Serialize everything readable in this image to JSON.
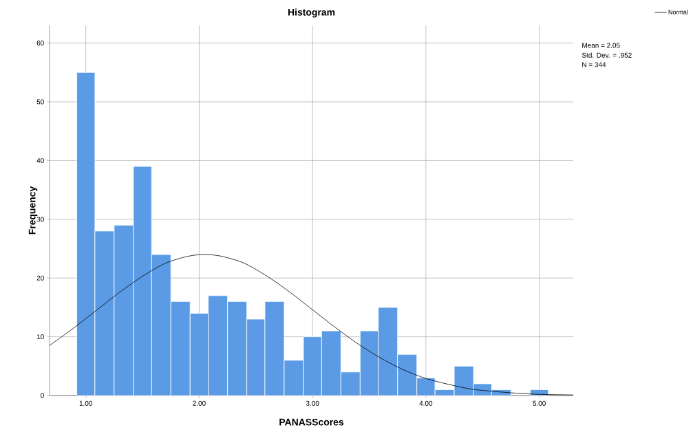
{
  "chart_data": {
    "type": "histogram",
    "title": "Histogram",
    "xlabel": "PANASScores",
    "ylabel": "Frequency",
    "bins": [
      0.92,
      1.08,
      1.25,
      1.42,
      1.58,
      1.75,
      1.92,
      2.08,
      2.25,
      2.42,
      2.58,
      2.75,
      2.92,
      3.08,
      3.25,
      3.42,
      3.58,
      3.75,
      3.92,
      4.08,
      4.25,
      4.42,
      4.58,
      4.75,
      4.92,
      5.08
    ],
    "values": [
      55,
      28,
      29,
      39,
      24,
      16,
      14,
      17,
      16,
      13,
      16,
      6,
      10,
      11,
      4,
      11,
      15,
      7,
      3,
      1,
      5,
      2,
      1,
      0,
      1
    ],
    "color": "#5b9be6",
    "series": [
      {
        "name": "Normal",
        "type": "line",
        "color": "#000000",
        "x": [
          0.68,
          0.9,
          1.1,
          1.3,
          1.5,
          1.7,
          1.9,
          2.05,
          2.2,
          2.4,
          2.6,
          2.8,
          3.0,
          3.2,
          3.4,
          3.6,
          3.8,
          4.0,
          4.2,
          4.4,
          4.6,
          4.8,
          5.0,
          5.3
        ],
        "values": [
          8.5,
          11.6,
          14.6,
          17.6,
          20.3,
          22.5,
          23.7,
          24.0,
          23.7,
          22.5,
          20.3,
          17.6,
          14.6,
          11.6,
          8.8,
          6.4,
          4.4,
          2.9,
          1.9,
          1.1,
          0.7,
          0.4,
          0.2,
          0.1
        ]
      }
    ],
    "xlim": [
      0.68,
      5.3
    ],
    "ylim": [
      0,
      63
    ],
    "xticks": [
      {
        "value": 1,
        "label": "1.00"
      },
      {
        "value": 2,
        "label": "2.00"
      },
      {
        "value": 3,
        "label": "3.00"
      },
      {
        "value": 4,
        "label": "4.00"
      },
      {
        "value": 5,
        "label": "5.00"
      }
    ],
    "yticks": [
      0,
      10,
      20,
      30,
      40,
      50,
      60
    ],
    "grid": true,
    "legend": "top right",
    "annotations": [
      "Mean = 2.05",
      "Std. Dev. = .952",
      "N = 344"
    ]
  }
}
